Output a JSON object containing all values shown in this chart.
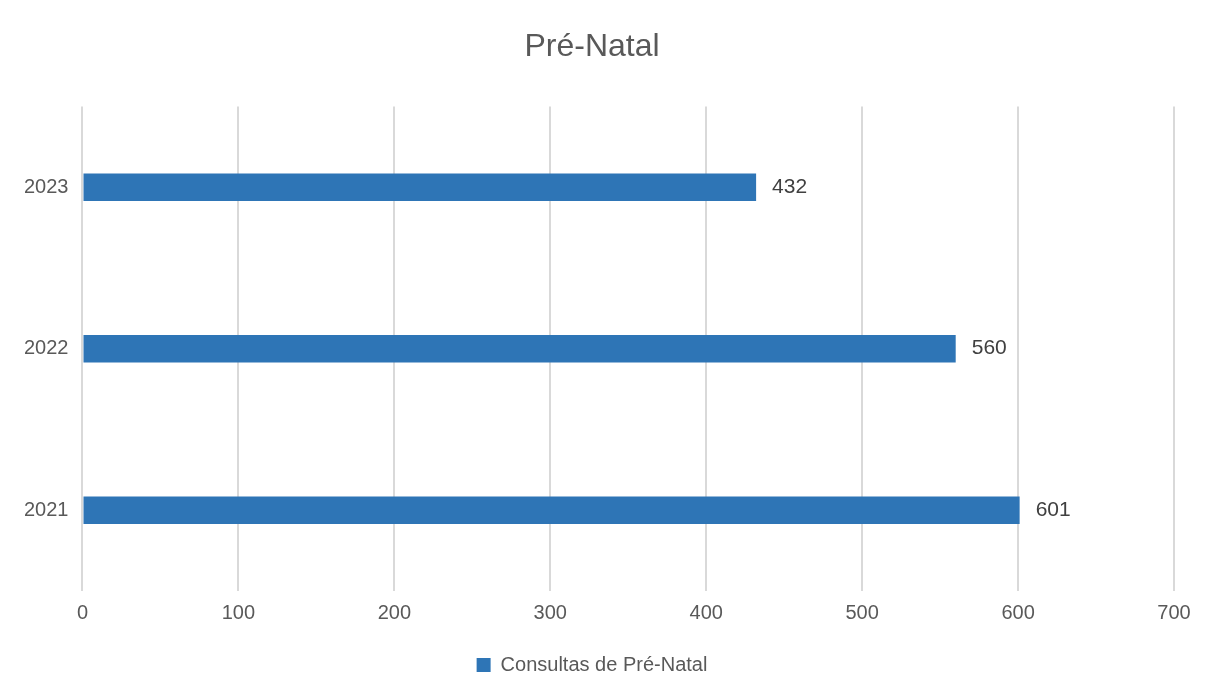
{
  "chart_data": {
    "type": "bar",
    "orientation": "horizontal",
    "title": "Pré-Natal",
    "categories": [
      "2023",
      "2022",
      "2021"
    ],
    "series": [
      {
        "name": "Consultas de Pré-Natal",
        "color": "#2e75b6",
        "values": [
          432,
          560,
          601
        ]
      }
    ],
    "xlim": [
      0,
      700
    ],
    "xticks": [
      0,
      100,
      200,
      300,
      400,
      500,
      600,
      700
    ],
    "grid": "x",
    "legend": "bottom",
    "data_labels": true
  }
}
